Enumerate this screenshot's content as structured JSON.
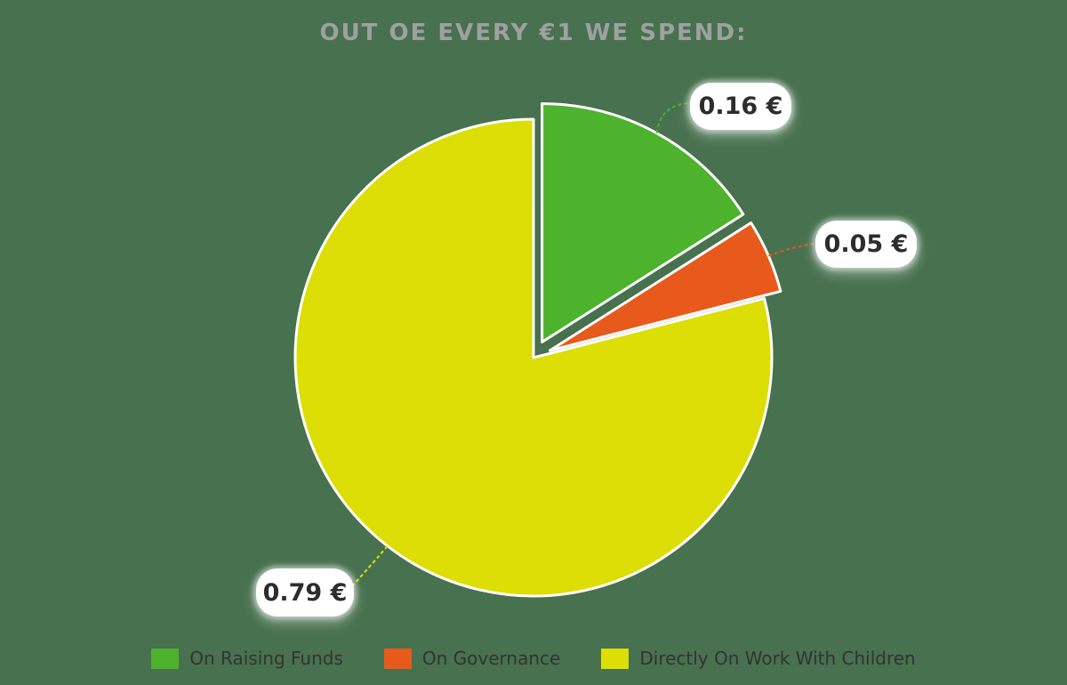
{
  "page": {
    "background_color": "#47714F",
    "title_color": "#9FA0A0",
    "label_text_color": "#2D2D2D",
    "legend_text_color": "#333333",
    "slice_outline_color": "#ffffff"
  },
  "chart_data": {
    "type": "pie",
    "title": "OUT OE EVERY €1 WE SPEND:",
    "unit": "€",
    "total": 1,
    "start_angle_deg": 0,
    "direction": "clockwise",
    "legend_position": "bottom",
    "slices": [
      {
        "id": "raising-funds",
        "label": "On Raising Funds",
        "value": 0.16,
        "display_value": "0.16 €",
        "color": "#4DB22C",
        "exploded": true
      },
      {
        "id": "governance",
        "label": "On Governance",
        "value": 0.05,
        "display_value": "0.05 €",
        "color": "#E8591C",
        "exploded": true
      },
      {
        "id": "work-with-children",
        "label": "Directly On Work With Children",
        "value": 0.79,
        "display_value": "0.79 €",
        "color": "#DCDE05",
        "exploded": false
      }
    ]
  }
}
